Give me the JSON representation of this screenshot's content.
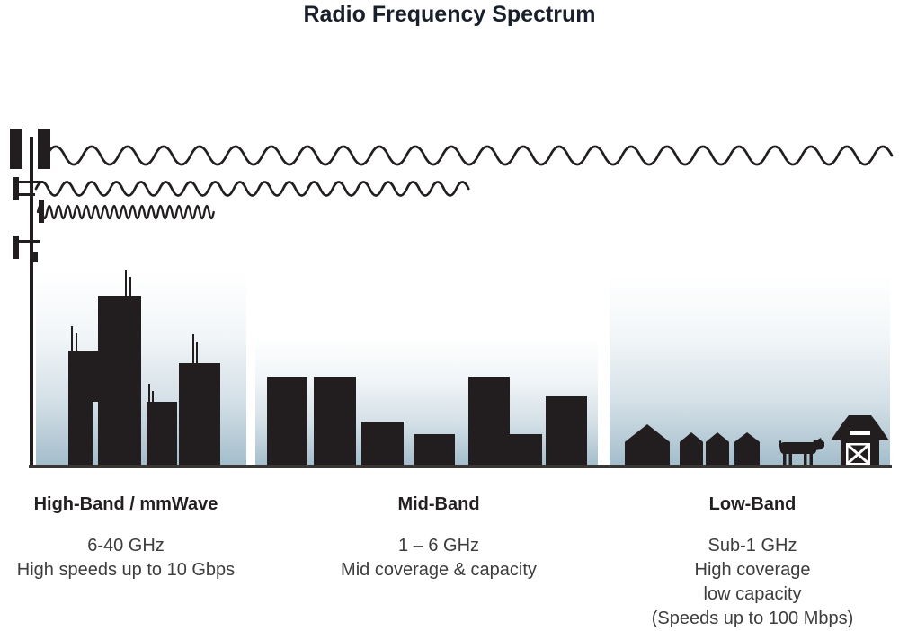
{
  "title": "Radio Frequency Spectrum",
  "colors": {
    "ink": "#221e1f",
    "title_text": "#19202b",
    "heading_text": "#231f20",
    "body_text": "#3d3d3d",
    "sky_top": "#ffffff",
    "sky_bottom": "#a2bcca",
    "ground": "#3a3634"
  },
  "bands": [
    {
      "name": "high-band",
      "heading": "High-Band / mmWave",
      "lines": [
        "6-40 GHz",
        "High speeds up to 10 Gbps"
      ]
    },
    {
      "name": "mid-band",
      "heading": "Mid-Band",
      "lines": [
        "1 – 6 GHz",
        "Mid coverage & capacity"
      ]
    },
    {
      "name": "low-band",
      "heading": "Low-Band",
      "lines": [
        "Sub-1 GHz",
        "High coverage",
        "low capacity",
        "(Speeds up to 100 Mbps)"
      ]
    }
  ],
  "icons": {
    "tower": "cell-tower-icon",
    "wave_long": "low-band-wave-icon",
    "wave_medium": "mid-band-wave-icon",
    "wave_short": "high-band-wave-icon",
    "city": "skyscraper-skyline-icon",
    "town": "mid-rise-skyline-icon",
    "farm": "farm-scene-icon"
  }
}
